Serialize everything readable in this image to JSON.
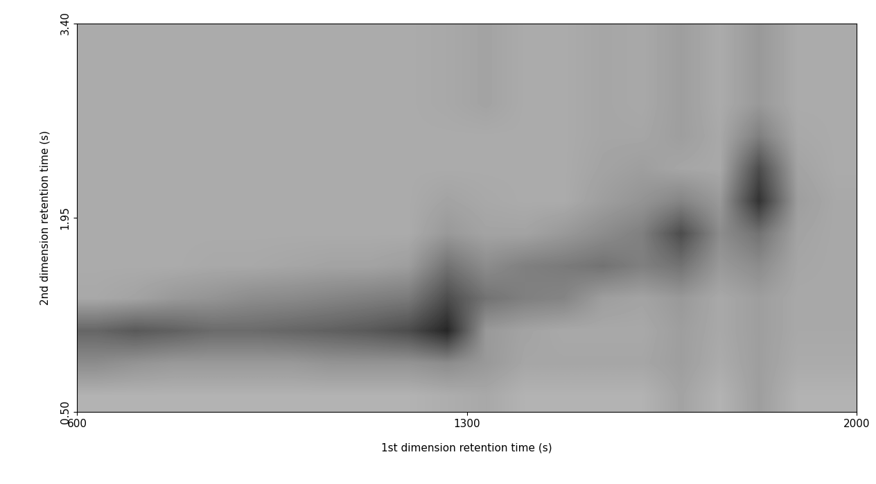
{
  "chart_data": {
    "type": "heatmap",
    "x_label": "1st dimension retention time (s)",
    "y_label": "2nd dimension retention time (s)",
    "xlim": [
      600,
      2000
    ],
    "ylim": [
      0.5,
      3.4
    ],
    "xticks": [
      600,
      1300,
      2000
    ],
    "yticks": [
      {
        "value": 0.5,
        "label": "0.50"
      },
      {
        "value": 1.95,
        "label": "1.95"
      },
      {
        "value": 3.4,
        "label": "3.40"
      }
    ],
    "cells": [
      [
        0.33,
        0.33,
        0.33,
        0.33,
        0.33,
        0.33,
        0.33,
        0.33,
        0.33,
        0.34,
        0.36,
        0.33,
        0.33,
        0.35,
        0.34,
        0.38,
        0.33,
        0.4,
        0.33,
        0.33
      ],
      [
        0.33,
        0.33,
        0.33,
        0.33,
        0.33,
        0.33,
        0.33,
        0.33,
        0.33,
        0.34,
        0.36,
        0.33,
        0.33,
        0.35,
        0.34,
        0.38,
        0.33,
        0.4,
        0.33,
        0.33
      ],
      [
        0.33,
        0.33,
        0.33,
        0.33,
        0.33,
        0.33,
        0.33,
        0.33,
        0.33,
        0.34,
        0.36,
        0.33,
        0.33,
        0.35,
        0.34,
        0.38,
        0.33,
        0.4,
        0.33,
        0.33
      ],
      [
        0.33,
        0.33,
        0.33,
        0.33,
        0.33,
        0.33,
        0.33,
        0.33,
        0.33,
        0.33,
        0.33,
        0.33,
        0.33,
        0.35,
        0.35,
        0.38,
        0.34,
        0.5,
        0.34,
        0.33
      ],
      [
        0.33,
        0.33,
        0.33,
        0.33,
        0.33,
        0.33,
        0.33,
        0.33,
        0.33,
        0.33,
        0.33,
        0.33,
        0.33,
        0.36,
        0.38,
        0.35,
        0.34,
        0.7,
        0.36,
        0.33
      ],
      [
        0.33,
        0.33,
        0.33,
        0.33,
        0.33,
        0.33,
        0.33,
        0.33,
        0.33,
        0.36,
        0.34,
        0.33,
        0.33,
        0.38,
        0.42,
        0.48,
        0.4,
        0.8,
        0.38,
        0.34
      ],
      [
        0.33,
        0.33,
        0.33,
        0.33,
        0.33,
        0.33,
        0.33,
        0.33,
        0.33,
        0.4,
        0.36,
        0.36,
        0.4,
        0.45,
        0.5,
        0.7,
        0.45,
        0.55,
        0.36,
        0.34
      ],
      [
        0.33,
        0.33,
        0.33,
        0.34,
        0.34,
        0.35,
        0.36,
        0.36,
        0.38,
        0.55,
        0.45,
        0.5,
        0.52,
        0.55,
        0.5,
        0.55,
        0.4,
        0.45,
        0.35,
        0.34
      ],
      [
        0.34,
        0.36,
        0.4,
        0.42,
        0.45,
        0.46,
        0.48,
        0.5,
        0.52,
        0.7,
        0.55,
        0.5,
        0.48,
        0.38,
        0.36,
        0.4,
        0.34,
        0.38,
        0.34,
        0.34
      ],
      [
        0.6,
        0.65,
        0.62,
        0.58,
        0.58,
        0.6,
        0.62,
        0.65,
        0.7,
        0.85,
        0.4,
        0.36,
        0.34,
        0.34,
        0.34,
        0.38,
        0.34,
        0.38,
        0.34,
        0.34
      ],
      [
        0.45,
        0.42,
        0.4,
        0.4,
        0.4,
        0.4,
        0.42,
        0.42,
        0.42,
        0.45,
        0.4,
        0.35,
        0.35,
        0.35,
        0.35,
        0.38,
        0.33,
        0.38,
        0.33,
        0.33
      ],
      [
        0.3,
        0.3,
        0.3,
        0.3,
        0.3,
        0.3,
        0.3,
        0.3,
        0.3,
        0.32,
        0.34,
        0.3,
        0.3,
        0.3,
        0.3,
        0.36,
        0.3,
        0.38,
        0.3,
        0.3
      ]
    ]
  }
}
